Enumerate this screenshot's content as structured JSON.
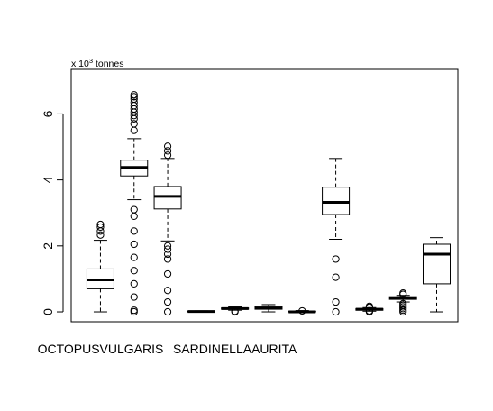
{
  "chart_data": {
    "type": "boxplot",
    "unit_label_prefix": "x 10",
    "unit_label_exponent": "3",
    "unit_label_suffix": " tonnes",
    "ylim": [
      -0.3,
      7.35
    ],
    "y_ticks": [
      0,
      2,
      4,
      6
    ],
    "x_labels": [
      {
        "text": "OCTOPUSVULGARIS",
        "at_box": 1
      },
      {
        "text": "SARDINELLAAURITA",
        "at_box": 5
      }
    ],
    "grid": false,
    "legend": "none",
    "boxes": [
      {
        "whisker_low": 0.0,
        "q1": 0.7,
        "median": 0.97,
        "q3": 1.3,
        "whisker_high": 2.17,
        "outliers": [
          2.33,
          2.45,
          2.57,
          2.65
        ]
      },
      {
        "whisker_low": 3.4,
        "q1": 4.12,
        "median": 4.38,
        "q3": 4.6,
        "whisker_high": 5.25,
        "outliers": [
          0.0,
          0.05,
          0.45,
          0.85,
          1.25,
          1.65,
          2.05,
          2.45,
          2.9,
          3.1,
          5.5,
          5.7,
          5.85,
          5.95,
          6.05,
          6.15,
          6.25,
          6.35,
          6.45,
          6.52,
          6.58
        ]
      },
      {
        "whisker_low": 2.15,
        "q1": 3.12,
        "median": 3.5,
        "q3": 3.8,
        "whisker_high": 4.65,
        "outliers": [
          0.0,
          0.3,
          0.65,
          1.15,
          1.6,
          1.75,
          1.9,
          2.0,
          4.75,
          4.88,
          5.02
        ]
      },
      {
        "whisker_low": 0.0,
        "q1": 0.0,
        "median": 0.01,
        "q3": 0.02,
        "whisker_high": 0.03,
        "outliers": []
      },
      {
        "whisker_low": 0.05,
        "q1": 0.08,
        "median": 0.1,
        "q3": 0.12,
        "whisker_high": 0.15,
        "outliers": [
          0.0,
          0.02
        ]
      },
      {
        "whisker_low": 0.0,
        "q1": 0.08,
        "median": 0.12,
        "q3": 0.17,
        "whisker_high": 0.22,
        "outliers": []
      },
      {
        "whisker_low": 0.0,
        "q1": 0.0,
        "median": 0.0,
        "q3": 0.02,
        "whisker_high": 0.04,
        "outliers": [
          0.03
        ]
      },
      {
        "whisker_low": 2.2,
        "q1": 2.95,
        "median": 3.32,
        "q3": 3.78,
        "whisker_high": 4.65,
        "outliers": [
          0.0,
          0.3,
          1.05,
          1.6
        ]
      },
      {
        "whisker_low": 0.02,
        "q1": 0.05,
        "median": 0.08,
        "q3": 0.1,
        "whisker_high": 0.13,
        "outliers": [
          0.0,
          0.03,
          0.14,
          0.17
        ]
      },
      {
        "whisker_low": 0.3,
        "q1": 0.38,
        "median": 0.42,
        "q3": 0.46,
        "whisker_high": 0.5,
        "outliers": [
          0.0,
          0.05,
          0.1,
          0.15,
          0.2,
          0.25,
          0.53,
          0.57
        ]
      },
      {
        "whisker_low": 0.0,
        "q1": 0.85,
        "median": 1.75,
        "q3": 2.05,
        "whisker_high": 2.25,
        "outliers": []
      }
    ]
  }
}
